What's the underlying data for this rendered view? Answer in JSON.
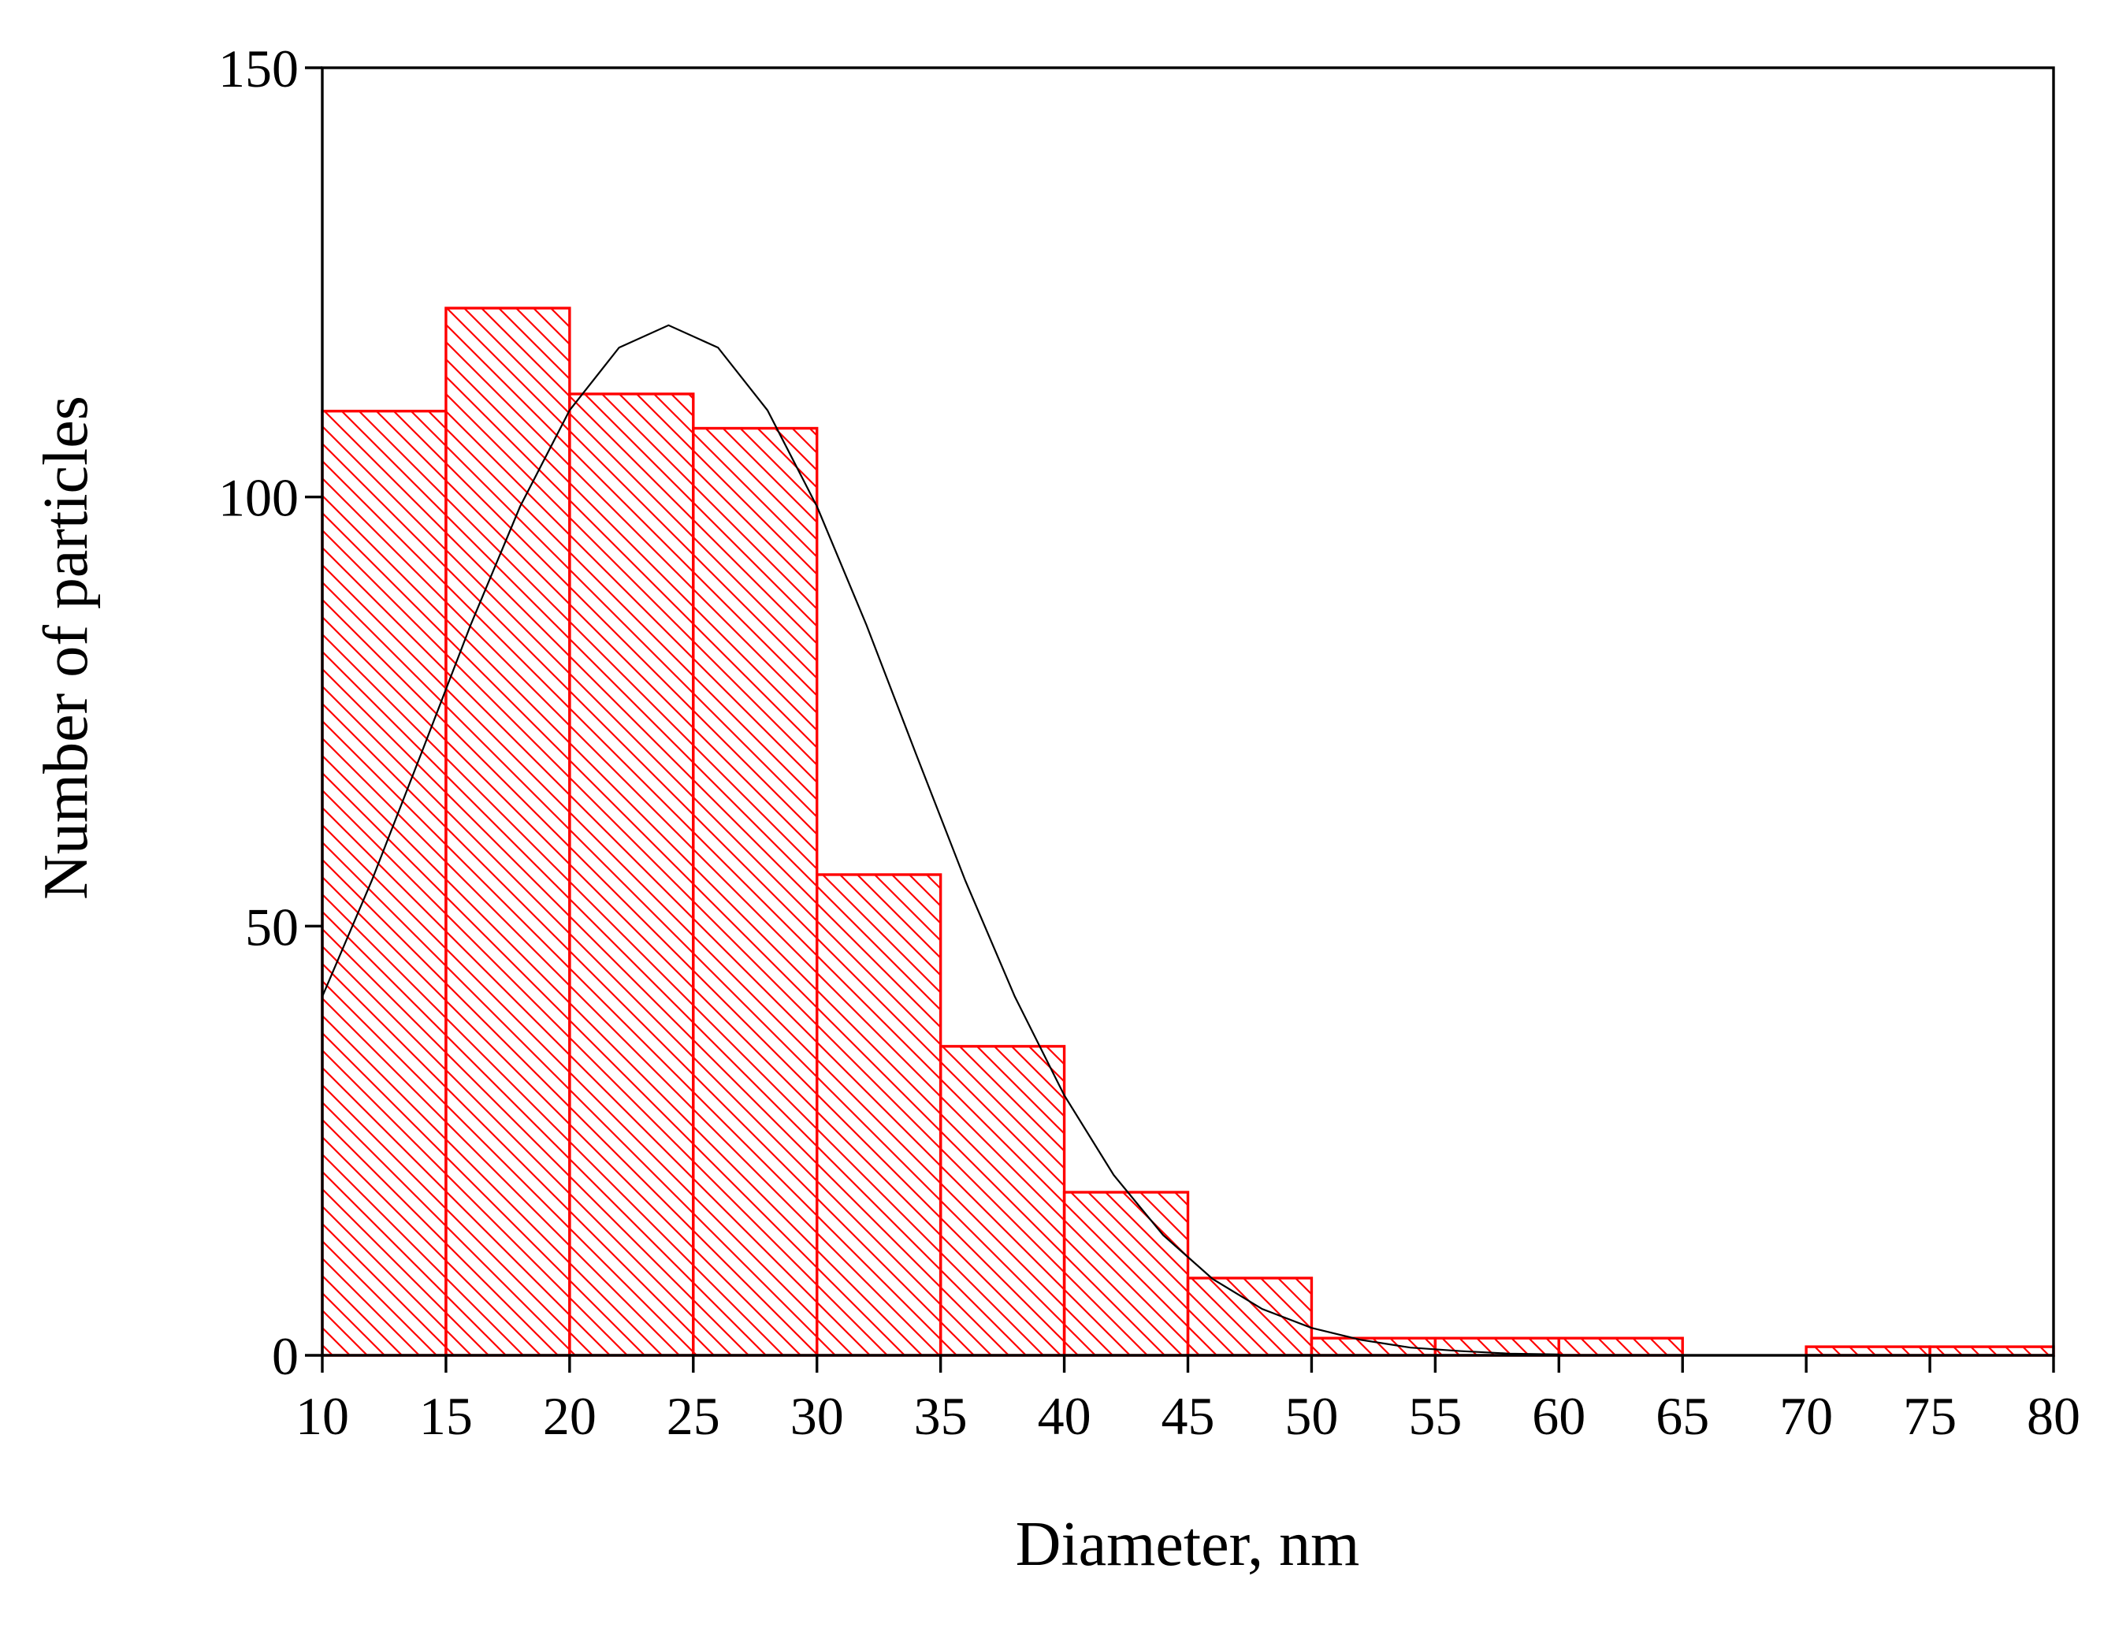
{
  "chart_data": {
    "type": "histogram",
    "xlabel": "Diameter, nm",
    "ylabel": "Number of particles",
    "bins": [
      10,
      15,
      20,
      25,
      30,
      35,
      40,
      45,
      50,
      55,
      60,
      65,
      70,
      75,
      80
    ],
    "values": [
      110,
      122,
      112,
      108,
      56,
      36,
      19,
      9,
      2,
      2,
      2,
      0,
      1,
      1
    ],
    "color": "#ff0000",
    "xlim": [
      10,
      80
    ],
    "ylim": [
      0,
      150
    ],
    "xticks": [
      10,
      15,
      20,
      25,
      30,
      35,
      40,
      45,
      50,
      55,
      60,
      65,
      70,
      75,
      80
    ],
    "yticks": [
      0,
      50,
      100,
      150
    ],
    "fit": {
      "color": "#000000",
      "x": [
        10,
        12,
        14,
        16,
        18,
        20,
        22,
        24,
        26,
        28,
        30,
        32,
        34,
        36,
        38,
        40,
        42,
        44,
        46,
        48,
        50,
        52,
        54,
        56,
        58,
        60
      ],
      "values": [
        41.8,
        55.3,
        70.1,
        85.1,
        98.9,
        110.1,
        117.4,
        120,
        117.4,
        110.1,
        98.9,
        85.1,
        70.1,
        55.3,
        41.8,
        30.3,
        21.0,
        14.0,
        8.9,
        5.4,
        3.2,
        1.8,
        0.9,
        0.5,
        0.2,
        0.1
      ]
    }
  }
}
